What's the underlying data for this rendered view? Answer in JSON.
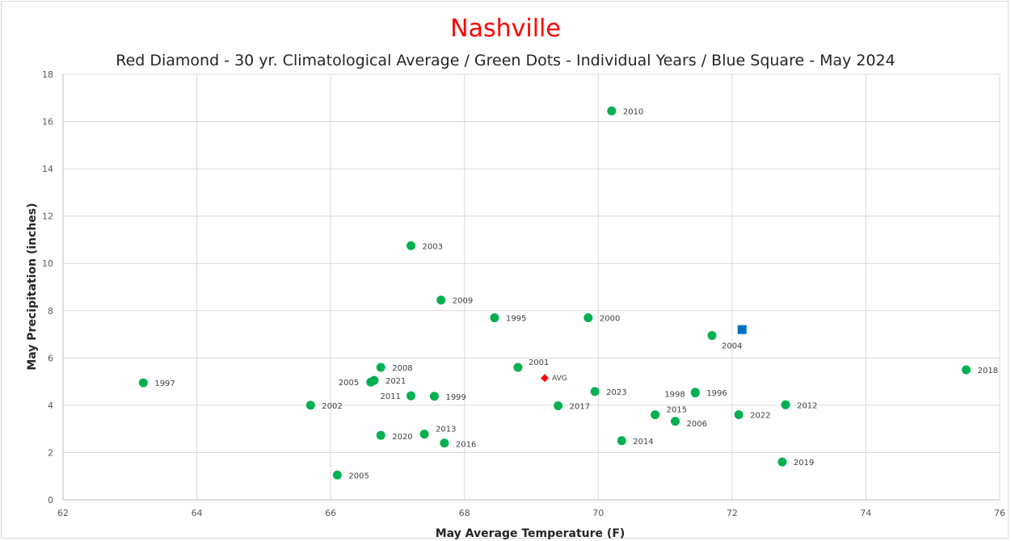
{
  "chart_data": {
    "type": "scatter",
    "title": "Nashville",
    "subtitle": "Red Diamond - 30 yr. Climatological Average / Green Dots - Individual Years / Blue Square - May 2024",
    "xlabel": "May Average Temperature (F)",
    "ylabel": "May Precipitation (inches)",
    "xlim": [
      62,
      76
    ],
    "ylim": [
      0,
      18
    ],
    "xticks": [
      62,
      64,
      66,
      68,
      70,
      72,
      74,
      76
    ],
    "yticks": [
      0,
      2,
      4,
      6,
      8,
      10,
      12,
      14,
      16,
      18
    ],
    "grid": true,
    "colors": {
      "years": "#00b050",
      "average": "#ff0000",
      "current": "#0070c0"
    },
    "series": [
      {
        "marker": "circle",
        "points": [
          {
            "label": "2010",
            "x": 70.2,
            "y": 16.45
          },
          {
            "label": "2003",
            "x": 67.2,
            "y": 10.75
          },
          {
            "label": "2009",
            "x": 67.65,
            "y": 8.45
          },
          {
            "label": "1995",
            "x": 68.45,
            "y": 7.7
          },
          {
            "label": "2000",
            "x": 69.85,
            "y": 7.7
          },
          {
            "label": "2004",
            "x": 71.7,
            "y": 6.95
          },
          {
            "label": "2008",
            "x": 66.75,
            "y": 5.6
          },
          {
            "label": "2001",
            "x": 68.8,
            "y": 5.6
          },
          {
            "label": "2018",
            "x": 75.5,
            "y": 5.5
          },
          {
            "label": "2021",
            "x": 66.65,
            "y": 5.05
          },
          {
            "label": "2005",
            "x": 66.6,
            "y": 4.98
          },
          {
            "label": "1997",
            "x": 63.2,
            "y": 4.95
          },
          {
            "label": "2023",
            "x": 69.95,
            "y": 4.58
          },
          {
            "label": "1996",
            "x": 71.45,
            "y": 4.55
          },
          {
            "label": "1998",
            "x": 71.45,
            "y": 4.52
          },
          {
            "label": "2011",
            "x": 67.2,
            "y": 4.4
          },
          {
            "label": "1999",
            "x": 67.55,
            "y": 4.38
          },
          {
            "label": "2012",
            "x": 72.8,
            "y": 4.02
          },
          {
            "label": "2002",
            "x": 65.7,
            "y": 4.0
          },
          {
            "label": "2017",
            "x": 69.4,
            "y": 3.98
          },
          {
            "label": "2015",
            "x": 70.85,
            "y": 3.6
          },
          {
            "label": "2022",
            "x": 72.1,
            "y": 3.6
          },
          {
            "label": "2006",
            "x": 71.15,
            "y": 3.32
          },
          {
            "label": "2013",
            "x": 67.4,
            "y": 2.78
          },
          {
            "label": "2020",
            "x": 66.75,
            "y": 2.73
          },
          {
            "label": "2014",
            "x": 70.35,
            "y": 2.5
          },
          {
            "label": "2016",
            "x": 67.7,
            "y": 2.4
          },
          {
            "label": "2019",
            "x": 72.75,
            "y": 1.6
          },
          {
            "label": "2005",
            "x": 66.1,
            "y": 1.05
          }
        ]
      },
      {
        "marker": "diamond",
        "points": [
          {
            "label": "AVG",
            "x": 69.2,
            "y": 5.15
          }
        ]
      },
      {
        "marker": "square",
        "points": [
          {
            "label": "",
            "x": 72.15,
            "y": 7.2
          }
        ]
      }
    ]
  }
}
